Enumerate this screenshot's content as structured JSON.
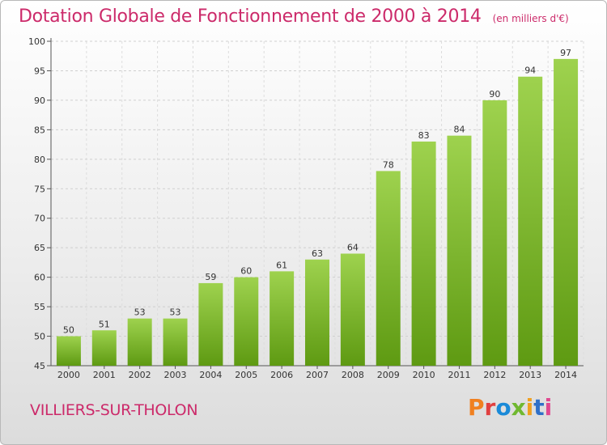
{
  "header": {
    "title": "Dotation Globale de Fonctionnement de 2000 à 2014",
    "subtitle": "(en milliers d'€)"
  },
  "footer": {
    "city": "VILLIERS-SUR-THOLON",
    "logo_text": "Proxiti"
  },
  "colors": {
    "title": "#cc2a6a",
    "bar_top": "#9ed24e",
    "bar_bottom": "#5e9a12",
    "logo_letters": [
      "#f08020",
      "#e04040",
      "#1a8ad8",
      "#70b830",
      "#f0a020",
      "#3070c8",
      "#e04890"
    ]
  },
  "chart_data": {
    "type": "bar",
    "categories": [
      "2000",
      "2001",
      "2002",
      "2003",
      "2004",
      "2005",
      "2006",
      "2007",
      "2008",
      "2009",
      "2010",
      "2011",
      "2012",
      "2013",
      "2014"
    ],
    "values": [
      50,
      51,
      53,
      53,
      59,
      60,
      61,
      63,
      64,
      78,
      83,
      84,
      90,
      94,
      97
    ],
    "title": "Dotation Globale de Fonctionnement de 2000 à 2014",
    "xlabel": "",
    "ylabel": "",
    "ylim": [
      45,
      100
    ],
    "yticks": [
      45,
      50,
      55,
      60,
      65,
      70,
      75,
      80,
      85,
      90,
      95,
      100
    ],
    "grid": true
  }
}
